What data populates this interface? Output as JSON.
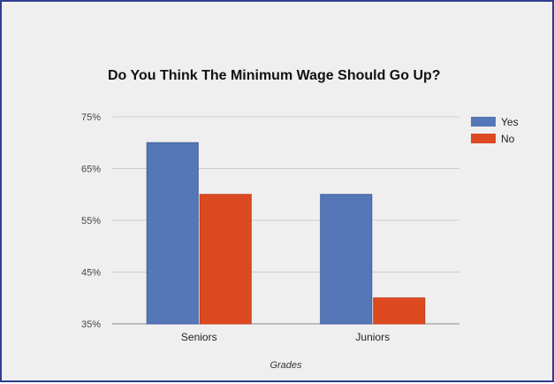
{
  "chart_data": {
    "type": "bar",
    "title": "Do You Think The Minimum Wage Should Go Up?",
    "xlabel": "Grades",
    "ylabel": "",
    "categories": [
      "Seniors",
      "Juniors"
    ],
    "series": [
      {
        "name": "Yes",
        "values": [
          70,
          60
        ],
        "color": "#5577b8"
      },
      {
        "name": "No",
        "values": [
          60,
          40
        ],
        "color": "#dd4a22"
      }
    ],
    "ylim": [
      35,
      75
    ],
    "yticks": [
      35,
      45,
      55,
      65,
      75
    ],
    "ytick_labels": [
      "35%",
      "45%",
      "55%",
      "65%",
      "75%"
    ],
    "grid": true,
    "legend_position": "right"
  }
}
